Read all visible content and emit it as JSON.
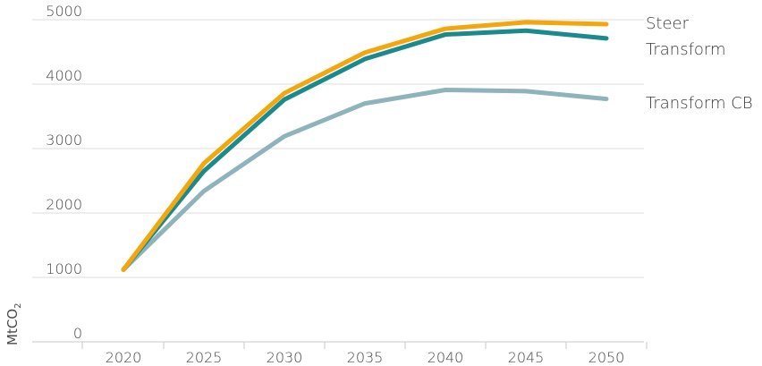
{
  "chart_data": {
    "type": "line",
    "ylabel": "MtCO",
    "ylabel_subscript": "2",
    "ylim": [
      0,
      5000
    ],
    "yticks": [
      0,
      1000,
      2000,
      3000,
      4000,
      5000
    ],
    "yticks_labels": [
      "0",
      "1000",
      "2000",
      "3000",
      "4000",
      "5000"
    ],
    "x": [
      "2020",
      "2025",
      "2030",
      "2035",
      "2040",
      "2045",
      "2050"
    ],
    "grid": true,
    "legend": "right-end labels",
    "series": [
      {
        "name": "Transform CB",
        "color": "#8fb3ba",
        "values": [
          1120,
          2340,
          3190,
          3700,
          3910,
          3890,
          3770
        ]
      },
      {
        "name": "Transform",
        "color": "#1b8a8c",
        "values": [
          1120,
          2650,
          3760,
          4390,
          4770,
          4830,
          4710
        ]
      },
      {
        "name": "Steer",
        "color": "#f2a70f",
        "values": [
          1120,
          2770,
          3860,
          4490,
          4860,
          4960,
          4930
        ]
      }
    ]
  }
}
